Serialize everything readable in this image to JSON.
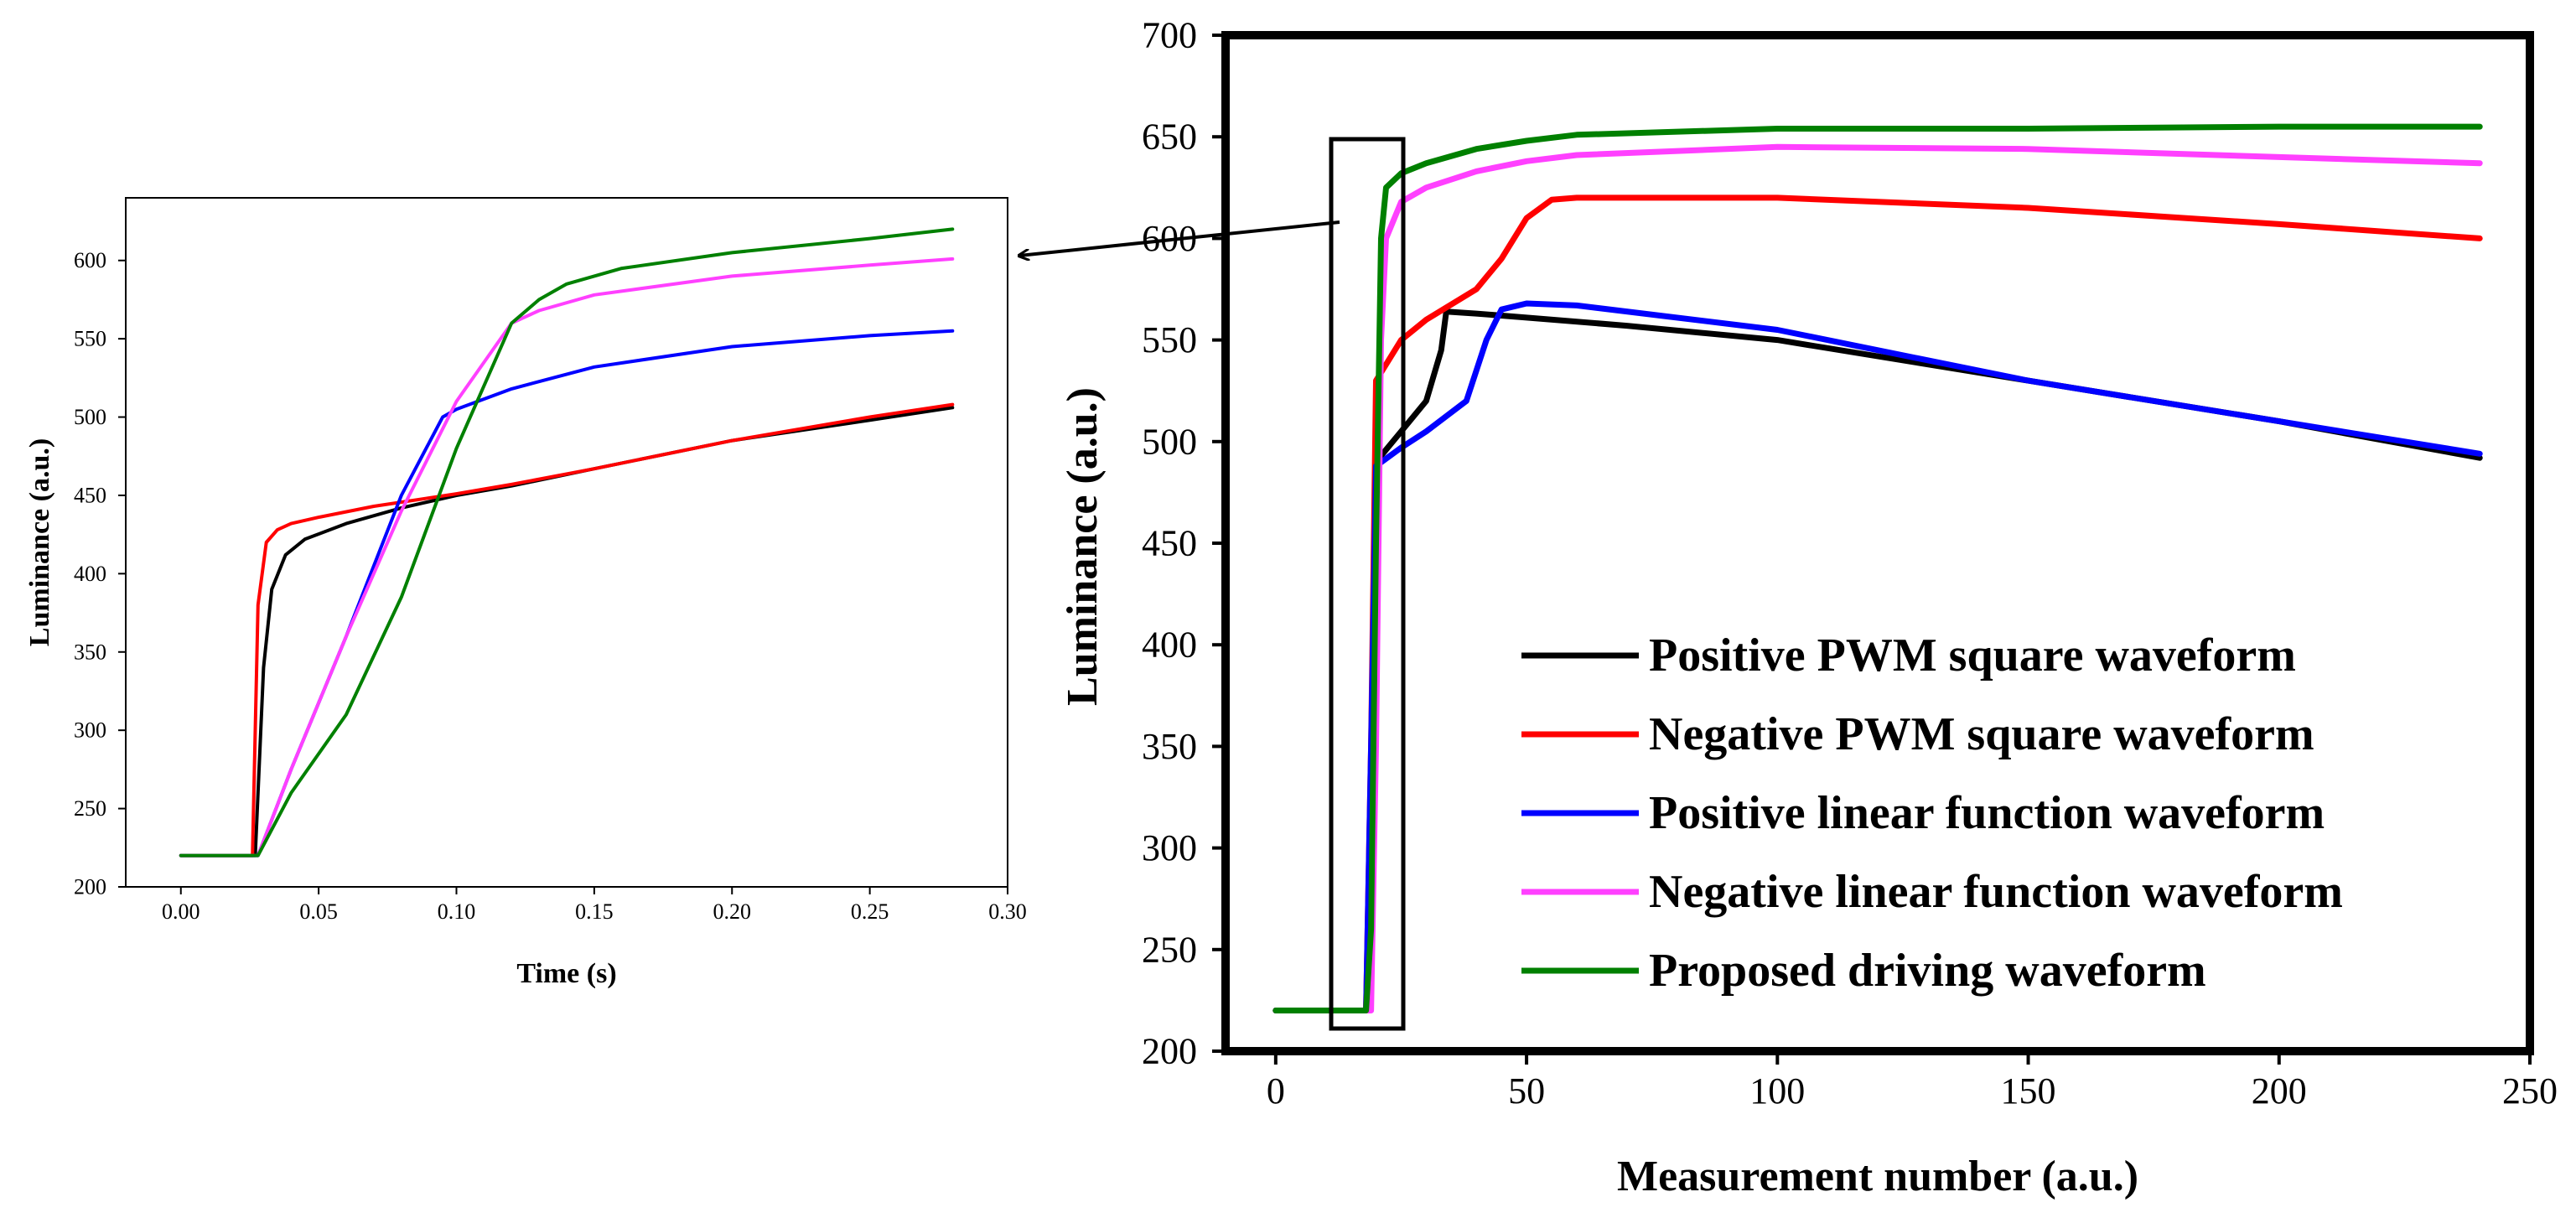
{
  "chart_data": [
    {
      "id": "inset",
      "type": "line",
      "title": "",
      "xlabel": "Time (s)",
      "ylabel": "Luminance (a.u.)",
      "xlim": [
        -0.02,
        0.3
      ],
      "ylim": [
        200,
        640
      ],
      "xticks": [
        0.0,
        0.05,
        0.1,
        0.15,
        0.2,
        0.25,
        0.3
      ],
      "xtick_labels": [
        "0.00",
        "0.05",
        "0.10",
        "0.15",
        "0.20",
        "0.25",
        "0.30"
      ],
      "yticks": [
        200,
        250,
        300,
        350,
        400,
        450,
        500,
        550,
        600
      ],
      "ytick_labels": [
        "200",
        "250",
        "300",
        "350",
        "400",
        "450",
        "500",
        "550",
        "600"
      ],
      "grid": false,
      "series": [
        {
          "name": "Positive PWM square waveform",
          "color": "#000000",
          "x": [
            0,
            0.027,
            0.03,
            0.033,
            0.038,
            0.045,
            0.06,
            0.08,
            0.1,
            0.12,
            0.15,
            0.2,
            0.25,
            0.28
          ],
          "y": [
            220,
            220,
            340,
            390,
            412,
            422,
            432,
            442,
            450,
            456,
            467,
            485,
            498,
            506
          ]
        },
        {
          "name": "Negative PWM square waveform",
          "color": "#ff0000",
          "x": [
            0,
            0.026,
            0.028,
            0.031,
            0.035,
            0.04,
            0.05,
            0.07,
            0.1,
            0.12,
            0.15,
            0.2,
            0.25,
            0.28
          ],
          "y": [
            220,
            220,
            380,
            420,
            428,
            432,
            436,
            443,
            451,
            457,
            467,
            485,
            500,
            508
          ]
        },
        {
          "name": "Positive linear function waveform",
          "color": "#0000ff",
          "x": [
            0,
            0.028,
            0.04,
            0.06,
            0.08,
            0.095,
            0.1,
            0.12,
            0.15,
            0.2,
            0.25,
            0.28
          ],
          "y": [
            220,
            220,
            275,
            360,
            450,
            500,
            505,
            518,
            532,
            545,
            552,
            555
          ]
        },
        {
          "name": "Negative linear function waveform",
          "color": "#ff40ff",
          "x": [
            0,
            0.028,
            0.04,
            0.06,
            0.08,
            0.1,
            0.12,
            0.13,
            0.15,
            0.2,
            0.25,
            0.28
          ],
          "y": [
            220,
            220,
            275,
            360,
            440,
            510,
            560,
            568,
            578,
            590,
            597,
            601
          ]
        },
        {
          "name": "Proposed driving waveform",
          "color": "#008000",
          "x": [
            0,
            0.028,
            0.04,
            0.06,
            0.08,
            0.1,
            0.12,
            0.13,
            0.14,
            0.16,
            0.2,
            0.25,
            0.28
          ],
          "y": [
            220,
            220,
            260,
            310,
            385,
            480,
            560,
            575,
            585,
            595,
            605,
            614,
            620
          ]
        }
      ]
    },
    {
      "id": "main",
      "type": "line",
      "title": "",
      "xlabel": "Measurement number (a.u.)",
      "ylabel": "Luminance (a.u.)",
      "xlim": [
        -10,
        250
      ],
      "ylim": [
        200,
        700
      ],
      "xticks": [
        0,
        50,
        100,
        150,
        200,
        250
      ],
      "xtick_labels": [
        "0",
        "50",
        "100",
        "150",
        "200",
        "250"
      ],
      "yticks": [
        200,
        250,
        300,
        350,
        400,
        450,
        500,
        550,
        600,
        650,
        700
      ],
      "ytick_labels": [
        "200",
        "250",
        "300",
        "350",
        "400",
        "450",
        "500",
        "550",
        "600",
        "650",
        "700"
      ],
      "grid": false,
      "legend_position": "bottom-right",
      "series": [
        {
          "name": "Positive PWM square waveform",
          "color": "#000000",
          "x": [
            0,
            5,
            18,
            19,
            20,
            25,
            30,
            33,
            34,
            40,
            50,
            70,
            100,
            150,
            200,
            240
          ],
          "y": [
            220,
            220,
            220,
            300,
            490,
            505,
            520,
            545,
            564,
            563,
            561,
            557,
            550,
            530,
            510,
            492
          ]
        },
        {
          "name": "Negative PWM square waveform",
          "color": "#ff0000",
          "x": [
            0,
            18,
            19,
            20,
            25,
            30,
            40,
            45,
            50,
            55,
            60,
            100,
            150,
            200,
            240
          ],
          "y": [
            220,
            220,
            350,
            530,
            550,
            560,
            575,
            590,
            610,
            619,
            620,
            620,
            615,
            607,
            600
          ]
        },
        {
          "name": "Positive linear function waveform",
          "color": "#0000ff",
          "x": [
            0,
            18,
            19,
            20,
            25,
            30,
            38,
            42,
            45,
            50,
            60,
            100,
            150,
            200,
            240
          ],
          "y": [
            220,
            220,
            350,
            488,
            497,
            505,
            520,
            550,
            565,
            568,
            567,
            555,
            530,
            510,
            494
          ]
        },
        {
          "name": "Negative linear function waveform",
          "color": "#ff40ff",
          "x": [
            0,
            19,
            20,
            21,
            22,
            25,
            30,
            40,
            50,
            60,
            100,
            150,
            200,
            240
          ],
          "y": [
            220,
            220,
            350,
            550,
            600,
            618,
            625,
            633,
            638,
            641,
            645,
            644,
            640,
            637
          ]
        },
        {
          "name": "Proposed driving waveform",
          "color": "#008000",
          "x": [
            0,
            18,
            19,
            20,
            21,
            22,
            25,
            30,
            40,
            50,
            60,
            100,
            150,
            200,
            240
          ],
          "y": [
            220,
            220,
            260,
            450,
            600,
            625,
            632,
            637,
            644,
            648,
            651,
            654,
            654,
            655,
            655
          ]
        }
      ]
    }
  ]
}
